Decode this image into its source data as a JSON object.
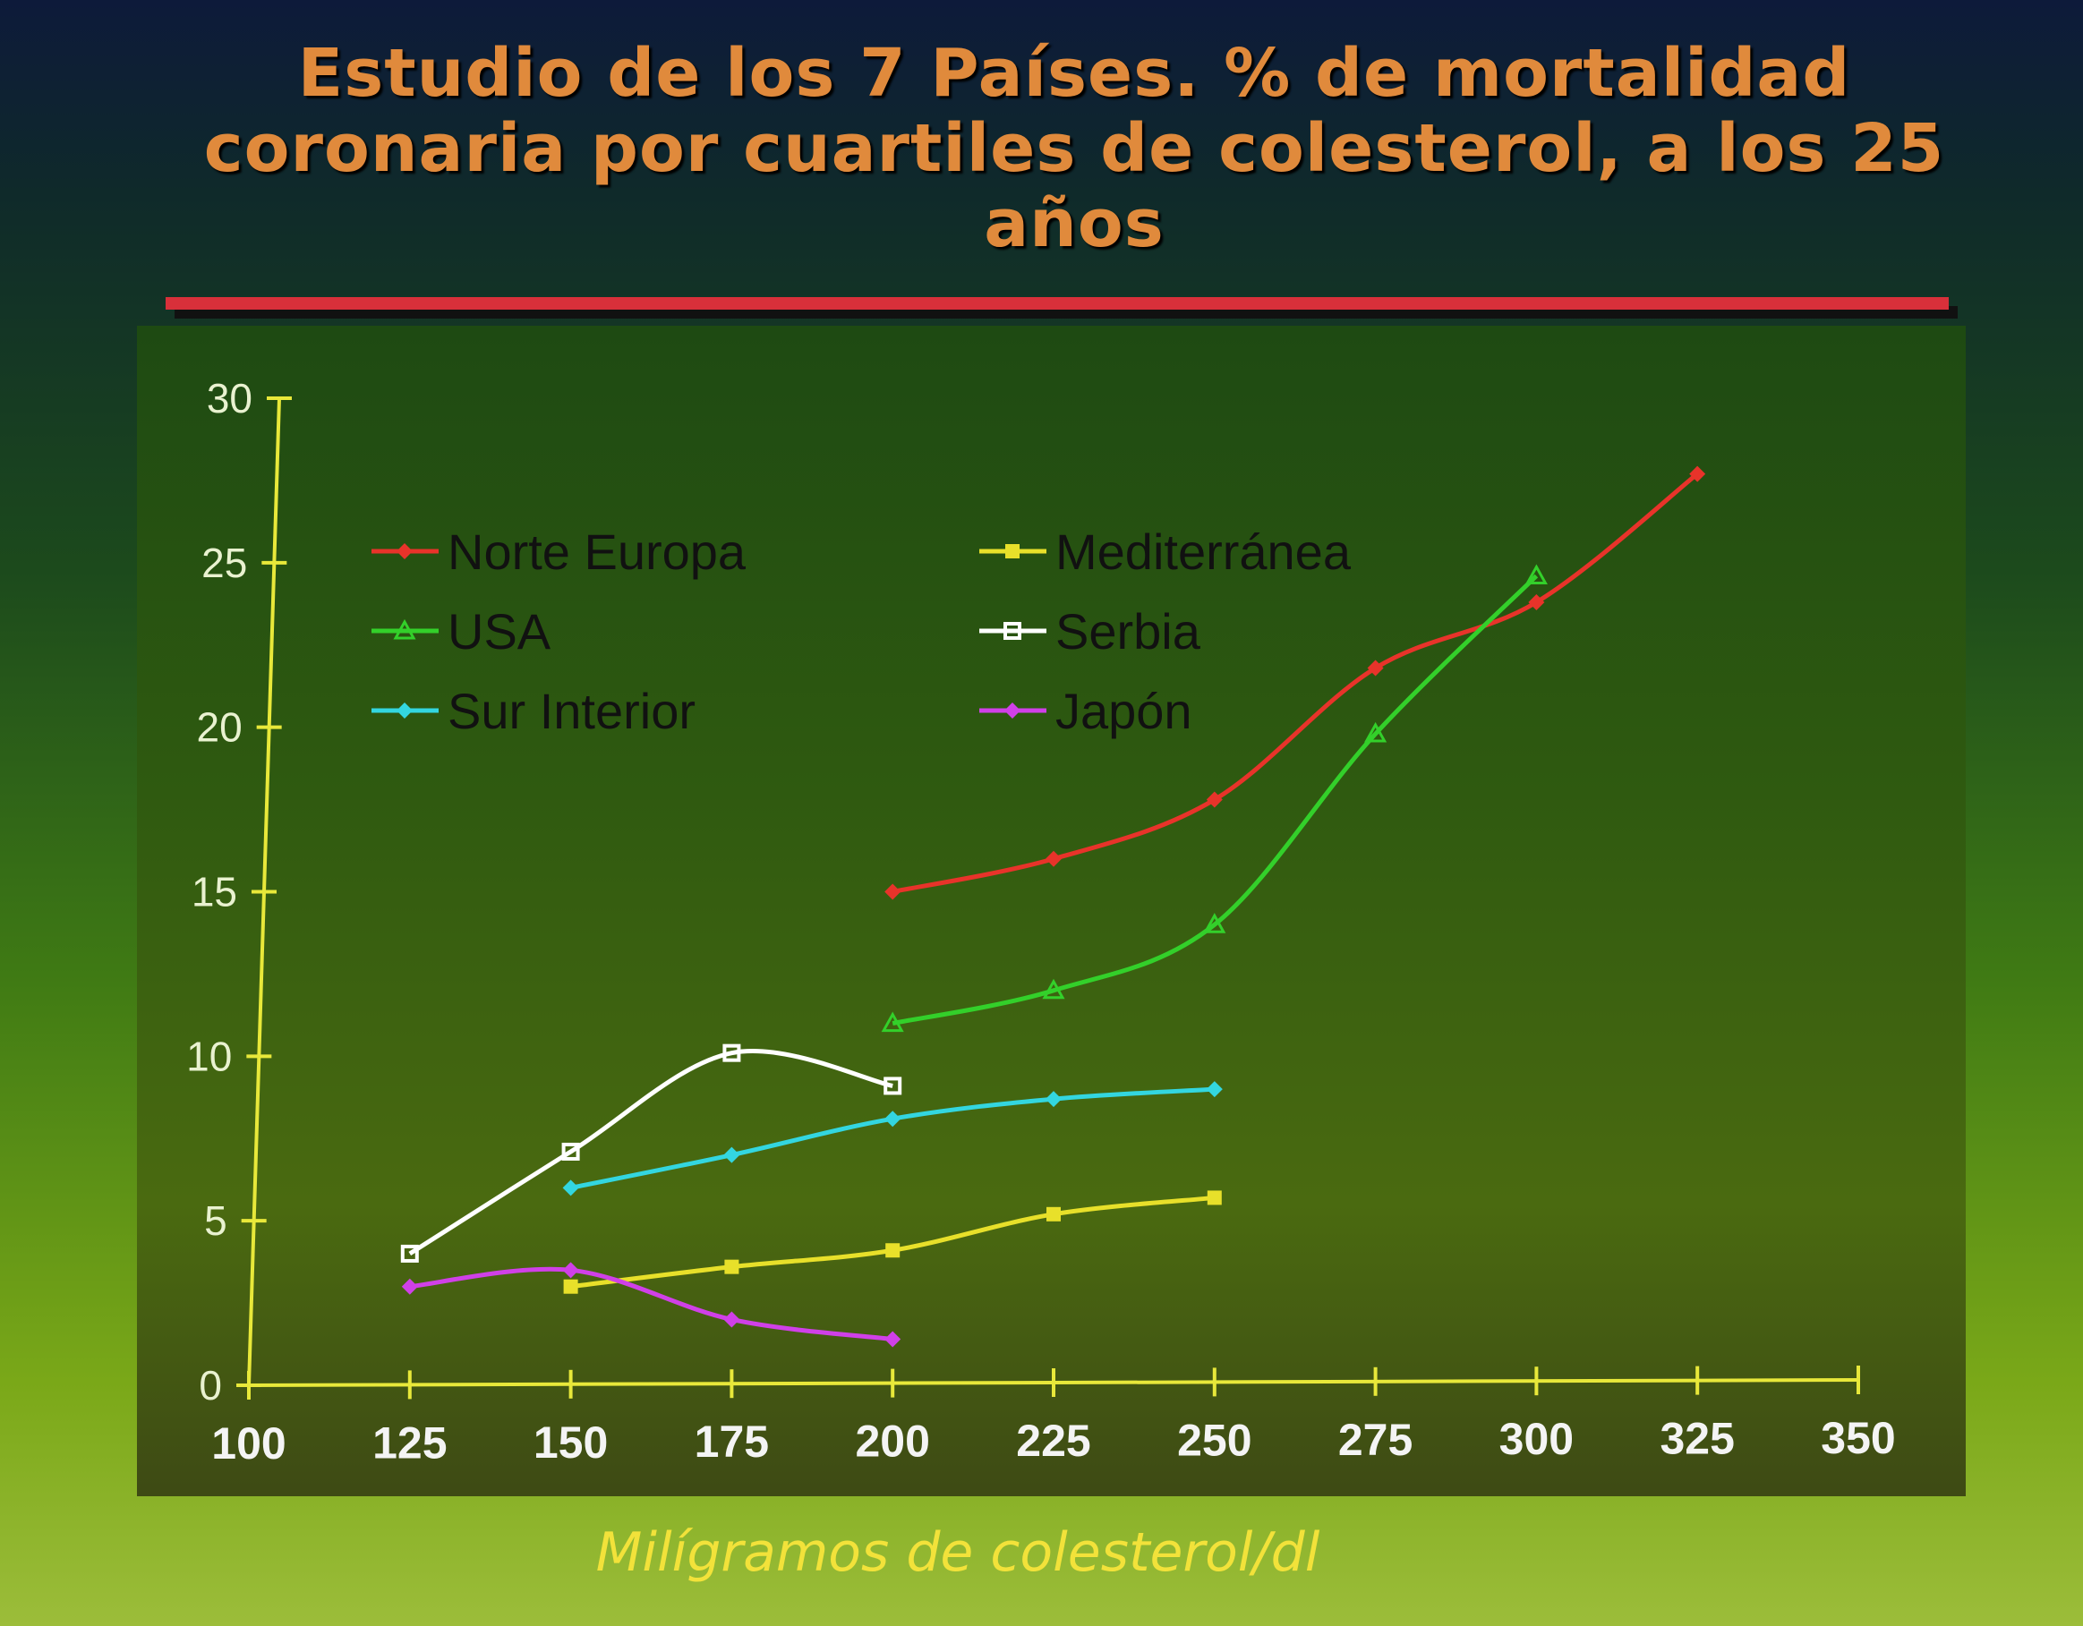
{
  "chart_data": {
    "type": "line",
    "title": "Estudio de los 7 Países. % de mortalidad coronaria por cuartiles de colesterol, a los 25 años",
    "title_lines": [
      "Estudio de los 7 Países. % de mortalidad",
      "coronaria por cuartiles de colesterol, a los 25",
      "años"
    ],
    "xlabel": "Milígramos de colesterol/dl",
    "ylabel": "",
    "xlim": [
      100,
      350
    ],
    "ylim": [
      0,
      30
    ],
    "xticks": [
      100,
      125,
      150,
      175,
      200,
      225,
      250,
      275,
      300,
      325,
      350
    ],
    "yticks": [
      0,
      5,
      10,
      15,
      20,
      25,
      30
    ],
    "grid": false,
    "legend_position": "top-left",
    "series": [
      {
        "name": "Norte Europa",
        "color": "#e8332a",
        "marker": "diamond",
        "x": [
          200,
          225,
          250,
          275,
          300,
          325
        ],
        "y": [
          15,
          16,
          17.8,
          21.8,
          23.8,
          27.7
        ]
      },
      {
        "name": "USA",
        "color": "#33d02a",
        "marker": "triangle",
        "x": [
          200,
          225,
          250,
          275,
          300
        ],
        "y": [
          11,
          12,
          14,
          19.8,
          24.6
        ]
      },
      {
        "name": "Sur Interior",
        "color": "#33d6e0",
        "marker": "diamond",
        "x": [
          150,
          175,
          200,
          225,
          250
        ],
        "y": [
          6,
          7,
          8.1,
          8.7,
          9
        ]
      },
      {
        "name": "Mediterránea",
        "color": "#e8e02a",
        "marker": "square",
        "x": [
          150,
          175,
          200,
          225,
          250
        ],
        "y": [
          3,
          3.6,
          4.1,
          5.2,
          5.7
        ]
      },
      {
        "name": "Serbia",
        "color": "#ffffff",
        "marker": "square-open",
        "x": [
          125,
          150,
          175,
          200
        ],
        "y": [
          4,
          7.1,
          10.1,
          9.1
        ]
      },
      {
        "name": "Japón",
        "color": "#d040e8",
        "marker": "diamond",
        "x": [
          125,
          150,
          175,
          200
        ],
        "y": [
          3,
          3.5,
          2,
          1.4
        ]
      }
    ]
  }
}
